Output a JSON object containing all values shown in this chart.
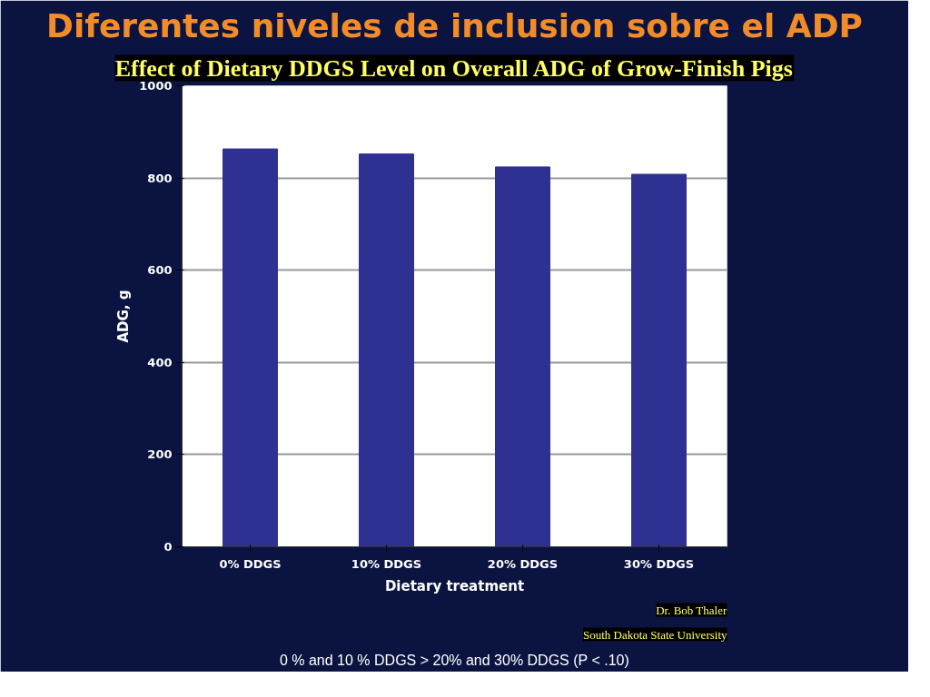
{
  "chart_data": {
    "type": "bar",
    "title": "Diferentes niveles de inclusion sobre el ADP",
    "subtitle": "Effect of Dietary DDGS Level on Overall ADG of Grow-Finish Pigs",
    "xlabel": "Dietary treatment",
    "ylabel": "ADG, g",
    "categories": [
      "0% DDGS",
      "10% DDGS",
      "20% DDGS",
      "30% DDGS"
    ],
    "values": [
      863,
      852,
      824,
      808
    ],
    "color": "#2e3192",
    "ylim": [
      0,
      1000
    ],
    "yticks": [
      0,
      200,
      400,
      600,
      800,
      1000
    ],
    "grid": "y",
    "annotations": [
      "Dr. Bob Thaler",
      "South Dakota State University",
      "0 % and 10 % DDGS > 20% and 30% DDGS (P < .10)"
    ]
  }
}
